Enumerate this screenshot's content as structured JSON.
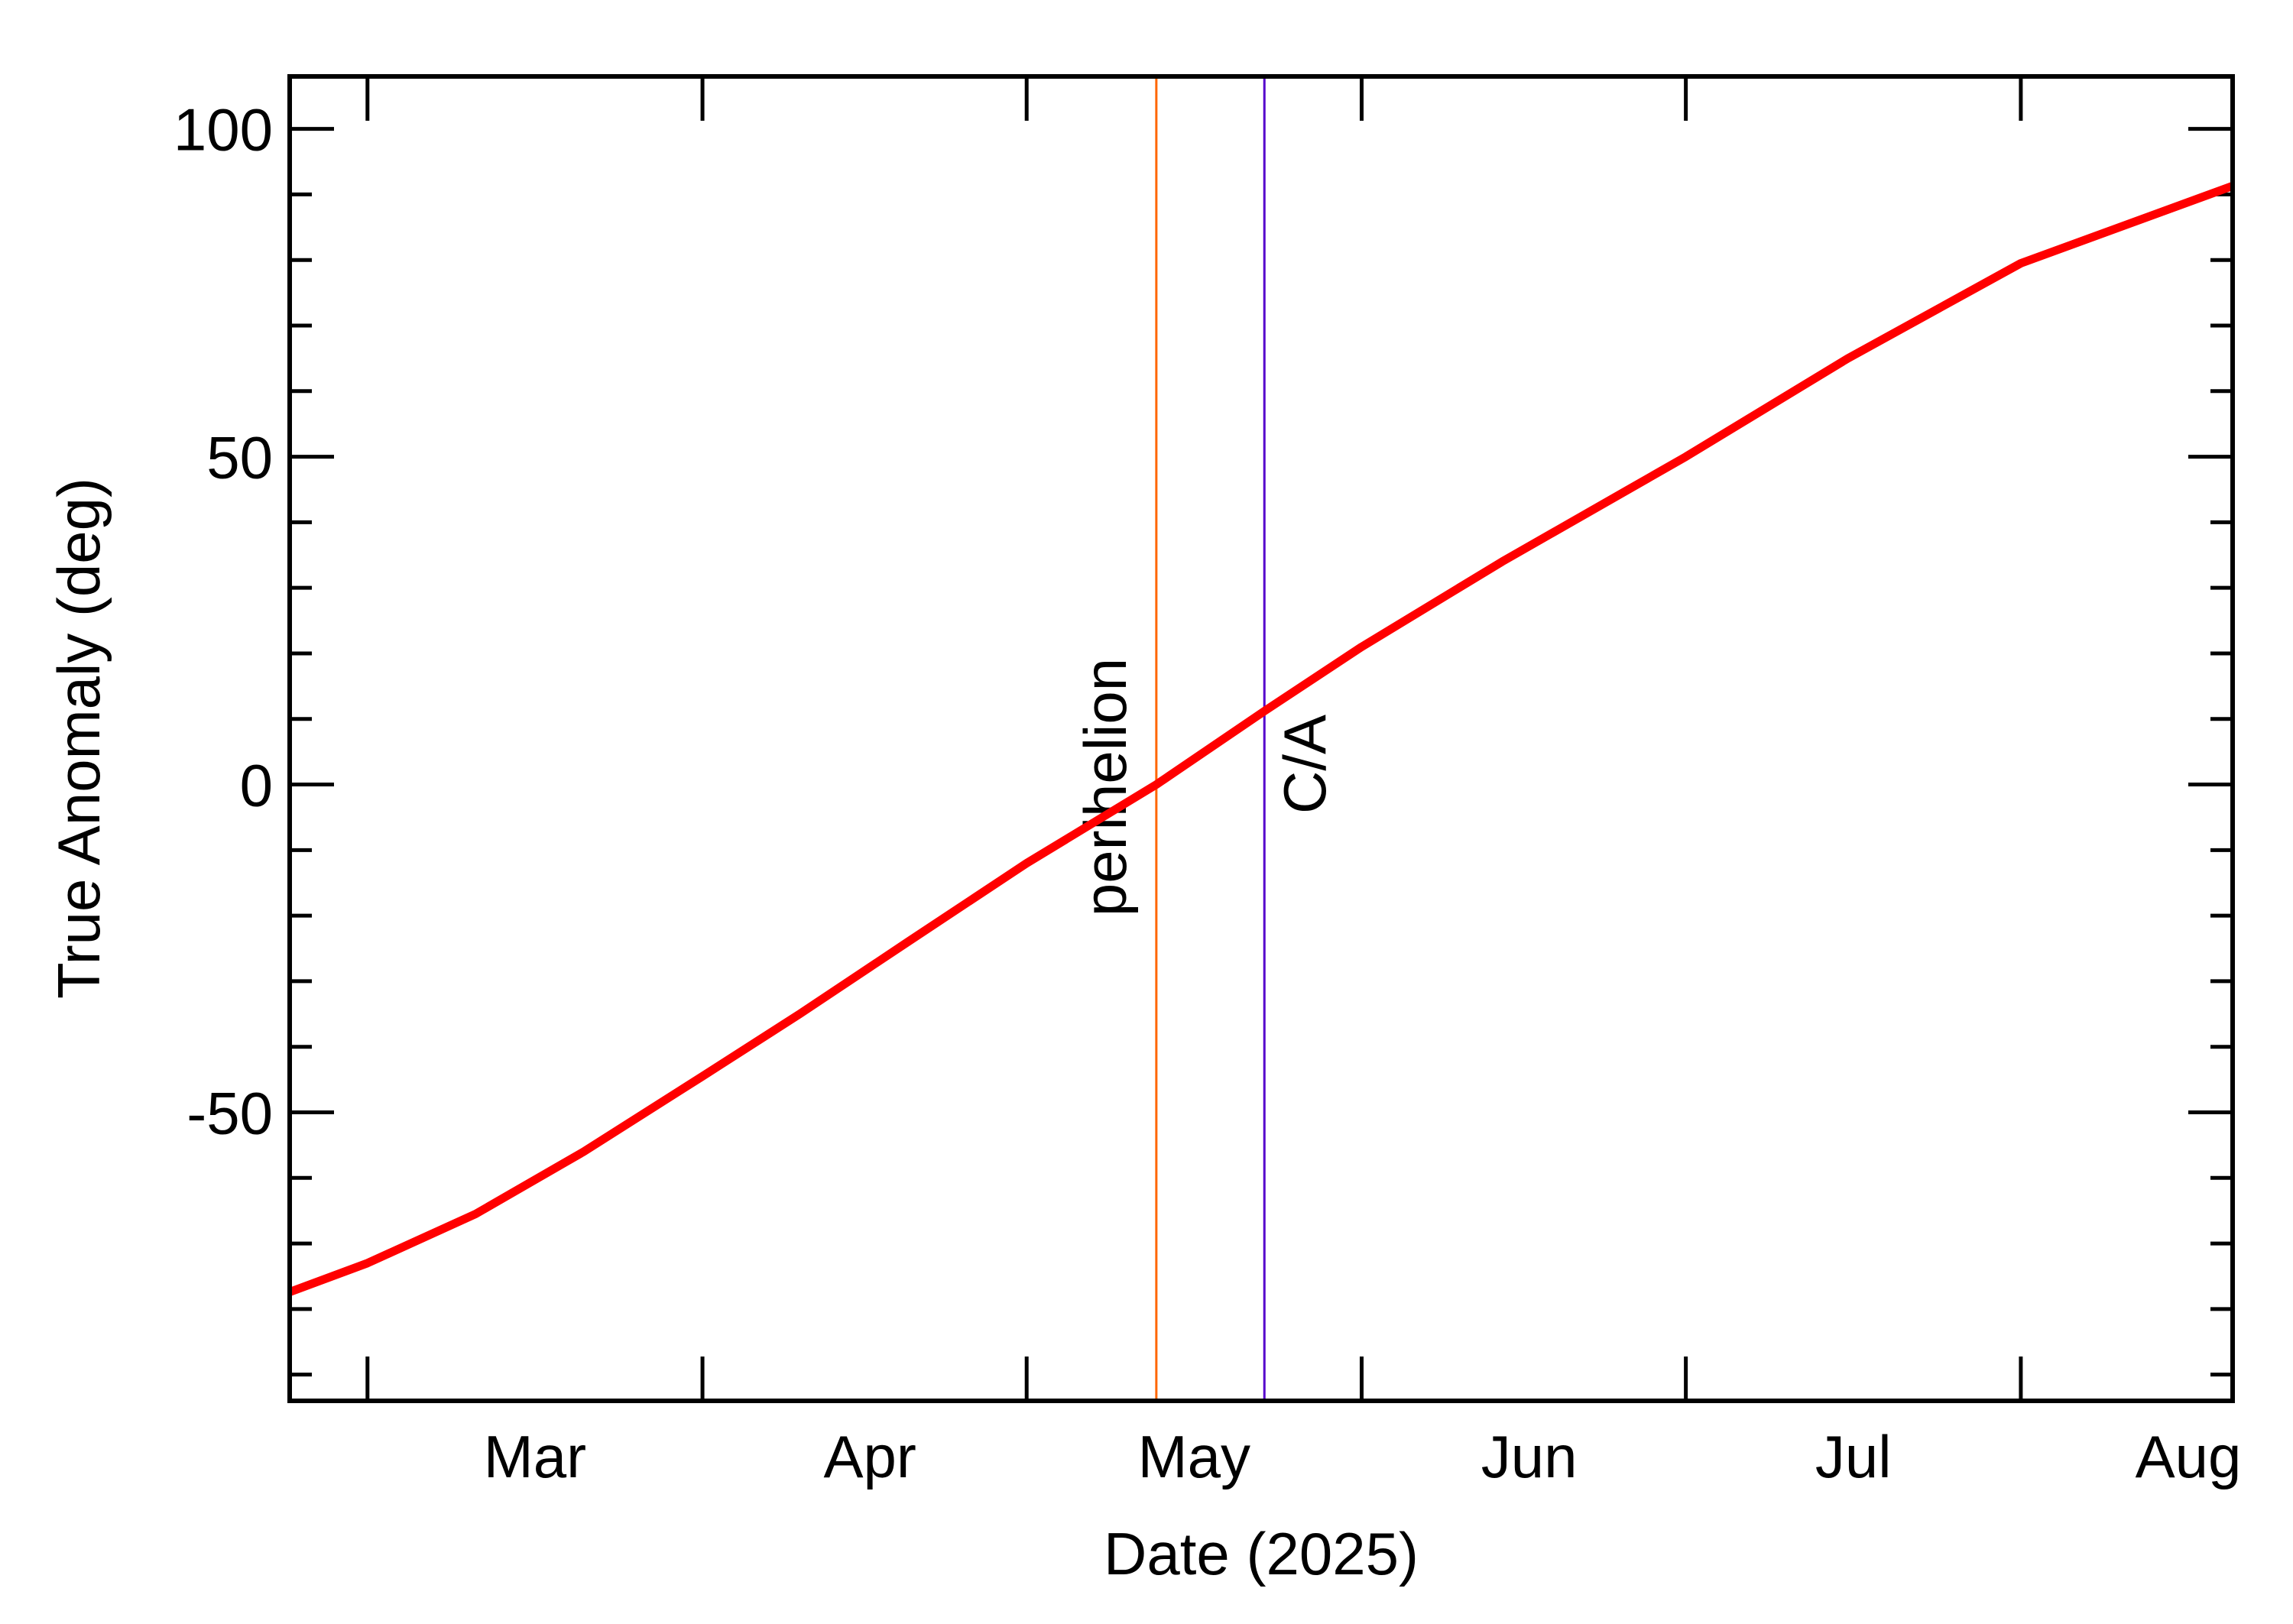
{
  "chart_data": {
    "type": "line",
    "xlabel": "Date (2025)",
    "ylabel": "True Anomaly (deg)",
    "x": [
      52.8,
      60,
      70,
      80,
      91,
      100,
      110,
      121,
      133,
      143,
      152,
      165,
      182,
      197,
      213,
      232.6
    ],
    "series": [
      {
        "name": "True Anomaly",
        "color": "#ff0000",
        "values": [
          -77.4,
          -73,
          -65.5,
          -56,
          -44.5,
          -35,
          -24,
          -12,
          0,
          11.2,
          21,
          34,
          50,
          65,
          79.5,
          91.3
        ]
      }
    ],
    "xlim": [
      52.8,
      232.6
    ],
    "xticks": [
      {
        "value": 60,
        "label": "Mar"
      },
      {
        "value": 91,
        "label": "Apr"
      },
      {
        "value": 121,
        "label": "May"
      },
      {
        "value": 152,
        "label": "Jun"
      },
      {
        "value": 182,
        "label": "Jul"
      },
      {
        "value": 213,
        "label": "Aug"
      }
    ],
    "ylim": [
      -94,
      108
    ],
    "yticks": [
      -50,
      0,
      50,
      100
    ],
    "yticks_minor": [
      -90,
      -80,
      -70,
      -60,
      -40,
      -30,
      -20,
      -10,
      10,
      20,
      30,
      40,
      60,
      70,
      80,
      90
    ],
    "annotations": [
      {
        "text": "perihelion",
        "x": 133,
        "color": "#ff6600"
      },
      {
        "text": "C/A",
        "x": 143,
        "color": "#5500cc"
      }
    ]
  }
}
